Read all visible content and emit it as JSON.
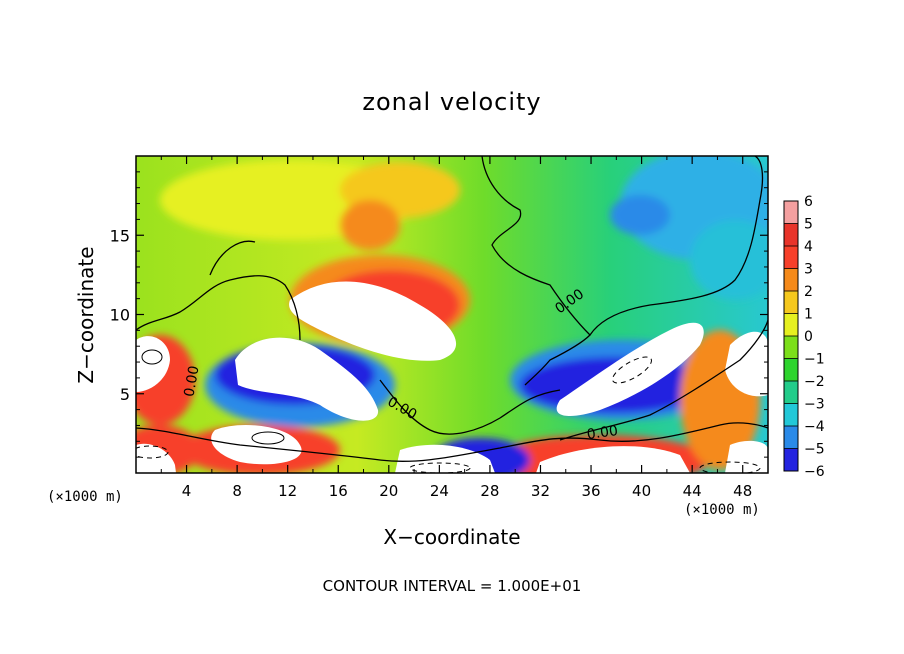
{
  "chart_data": {
    "type": "heatmap",
    "title": "zonal velocity",
    "xlabel": "X−coordinate",
    "ylabel": "Z−coordinate",
    "x_unit": "(×1000 m)",
    "z_unit": "(×1000 m)",
    "xlim": [
      0,
      50
    ],
    "ylim": [
      0,
      20
    ],
    "x_ticks": [
      4,
      8,
      12,
      16,
      20,
      24,
      28,
      32,
      36,
      40,
      44,
      48
    ],
    "y_ticks": [
      5,
      10,
      15
    ],
    "colorbar": {
      "levels": [
        6,
        5,
        4,
        3,
        2,
        1,
        0,
        -1,
        -2,
        -3,
        -4,
        -5,
        -6
      ],
      "colors": [
        "#f4a0a0",
        "#e8342a",
        "#f7402a",
        "#f58a1a",
        "#f5c81e",
        "#e6f020",
        "#7cdf1a",
        "#2ed42e",
        "#22cc8a",
        "#22c8d8",
        "#2a8ae8",
        "#2424e0",
        "#7a1ab8"
      ]
    },
    "contour_labels": [
      "0.00",
      "0.00",
      "0.00",
      "0.00"
    ],
    "contour_interval": "CONTOUR INTERVAL = 1.000E+01"
  }
}
